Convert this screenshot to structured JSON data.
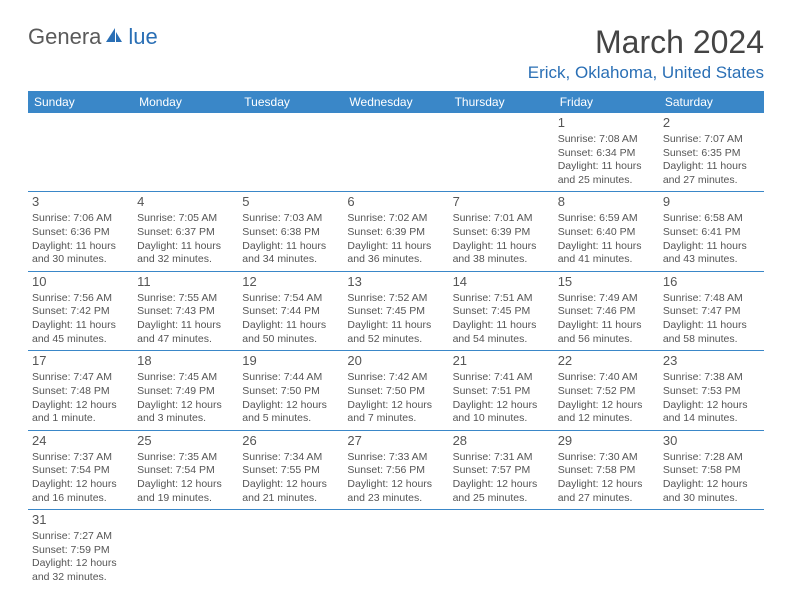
{
  "logo": {
    "text_gray": "Genera",
    "text_blue": "lue"
  },
  "title": "March 2024",
  "location": "Erick, Oklahoma, United States",
  "colors": {
    "header_bg": "#3a87c8",
    "header_fg": "#ffffff",
    "accent": "#2a6fb5",
    "text": "#555555",
    "rule": "#3a87c8"
  },
  "weekdays": [
    "Sunday",
    "Monday",
    "Tuesday",
    "Wednesday",
    "Thursday",
    "Friday",
    "Saturday"
  ],
  "grid": [
    [
      null,
      null,
      null,
      null,
      null,
      {
        "n": "1",
        "sr": "7:08 AM",
        "ss": "6:34 PM",
        "dl1": "11 hours",
        "dl2": "and 25 minutes."
      },
      {
        "n": "2",
        "sr": "7:07 AM",
        "ss": "6:35 PM",
        "dl1": "11 hours",
        "dl2": "and 27 minutes."
      }
    ],
    [
      {
        "n": "3",
        "sr": "7:06 AM",
        "ss": "6:36 PM",
        "dl1": "11 hours",
        "dl2": "and 30 minutes."
      },
      {
        "n": "4",
        "sr": "7:05 AM",
        "ss": "6:37 PM",
        "dl1": "11 hours",
        "dl2": "and 32 minutes."
      },
      {
        "n": "5",
        "sr": "7:03 AM",
        "ss": "6:38 PM",
        "dl1": "11 hours",
        "dl2": "and 34 minutes."
      },
      {
        "n": "6",
        "sr": "7:02 AM",
        "ss": "6:39 PM",
        "dl1": "11 hours",
        "dl2": "and 36 minutes."
      },
      {
        "n": "7",
        "sr": "7:01 AM",
        "ss": "6:39 PM",
        "dl1": "11 hours",
        "dl2": "and 38 minutes."
      },
      {
        "n": "8",
        "sr": "6:59 AM",
        "ss": "6:40 PM",
        "dl1": "11 hours",
        "dl2": "and 41 minutes."
      },
      {
        "n": "9",
        "sr": "6:58 AM",
        "ss": "6:41 PM",
        "dl1": "11 hours",
        "dl2": "and 43 minutes."
      }
    ],
    [
      {
        "n": "10",
        "sr": "7:56 AM",
        "ss": "7:42 PM",
        "dl1": "11 hours",
        "dl2": "and 45 minutes."
      },
      {
        "n": "11",
        "sr": "7:55 AM",
        "ss": "7:43 PM",
        "dl1": "11 hours",
        "dl2": "and 47 minutes."
      },
      {
        "n": "12",
        "sr": "7:54 AM",
        "ss": "7:44 PM",
        "dl1": "11 hours",
        "dl2": "and 50 minutes."
      },
      {
        "n": "13",
        "sr": "7:52 AM",
        "ss": "7:45 PM",
        "dl1": "11 hours",
        "dl2": "and 52 minutes."
      },
      {
        "n": "14",
        "sr": "7:51 AM",
        "ss": "7:45 PM",
        "dl1": "11 hours",
        "dl2": "and 54 minutes."
      },
      {
        "n": "15",
        "sr": "7:49 AM",
        "ss": "7:46 PM",
        "dl1": "11 hours",
        "dl2": "and 56 minutes."
      },
      {
        "n": "16",
        "sr": "7:48 AM",
        "ss": "7:47 PM",
        "dl1": "11 hours",
        "dl2": "and 58 minutes."
      }
    ],
    [
      {
        "n": "17",
        "sr": "7:47 AM",
        "ss": "7:48 PM",
        "dl1": "12 hours",
        "dl2": "and 1 minute."
      },
      {
        "n": "18",
        "sr": "7:45 AM",
        "ss": "7:49 PM",
        "dl1": "12 hours",
        "dl2": "and 3 minutes."
      },
      {
        "n": "19",
        "sr": "7:44 AM",
        "ss": "7:50 PM",
        "dl1": "12 hours",
        "dl2": "and 5 minutes."
      },
      {
        "n": "20",
        "sr": "7:42 AM",
        "ss": "7:50 PM",
        "dl1": "12 hours",
        "dl2": "and 7 minutes."
      },
      {
        "n": "21",
        "sr": "7:41 AM",
        "ss": "7:51 PM",
        "dl1": "12 hours",
        "dl2": "and 10 minutes."
      },
      {
        "n": "22",
        "sr": "7:40 AM",
        "ss": "7:52 PM",
        "dl1": "12 hours",
        "dl2": "and 12 minutes."
      },
      {
        "n": "23",
        "sr": "7:38 AM",
        "ss": "7:53 PM",
        "dl1": "12 hours",
        "dl2": "and 14 minutes."
      }
    ],
    [
      {
        "n": "24",
        "sr": "7:37 AM",
        "ss": "7:54 PM",
        "dl1": "12 hours",
        "dl2": "and 16 minutes."
      },
      {
        "n": "25",
        "sr": "7:35 AM",
        "ss": "7:54 PM",
        "dl1": "12 hours",
        "dl2": "and 19 minutes."
      },
      {
        "n": "26",
        "sr": "7:34 AM",
        "ss": "7:55 PM",
        "dl1": "12 hours",
        "dl2": "and 21 minutes."
      },
      {
        "n": "27",
        "sr": "7:33 AM",
        "ss": "7:56 PM",
        "dl1": "12 hours",
        "dl2": "and 23 minutes."
      },
      {
        "n": "28",
        "sr": "7:31 AM",
        "ss": "7:57 PM",
        "dl1": "12 hours",
        "dl2": "and 25 minutes."
      },
      {
        "n": "29",
        "sr": "7:30 AM",
        "ss": "7:58 PM",
        "dl1": "12 hours",
        "dl2": "and 27 minutes."
      },
      {
        "n": "30",
        "sr": "7:28 AM",
        "ss": "7:58 PM",
        "dl1": "12 hours",
        "dl2": "and 30 minutes."
      }
    ],
    [
      {
        "n": "31",
        "sr": "7:27 AM",
        "ss": "7:59 PM",
        "dl1": "12 hours",
        "dl2": "and 32 minutes."
      },
      null,
      null,
      null,
      null,
      null,
      null
    ]
  ],
  "labels": {
    "sunrise": "Sunrise: ",
    "sunset": "Sunset: ",
    "daylight": "Daylight: "
  }
}
